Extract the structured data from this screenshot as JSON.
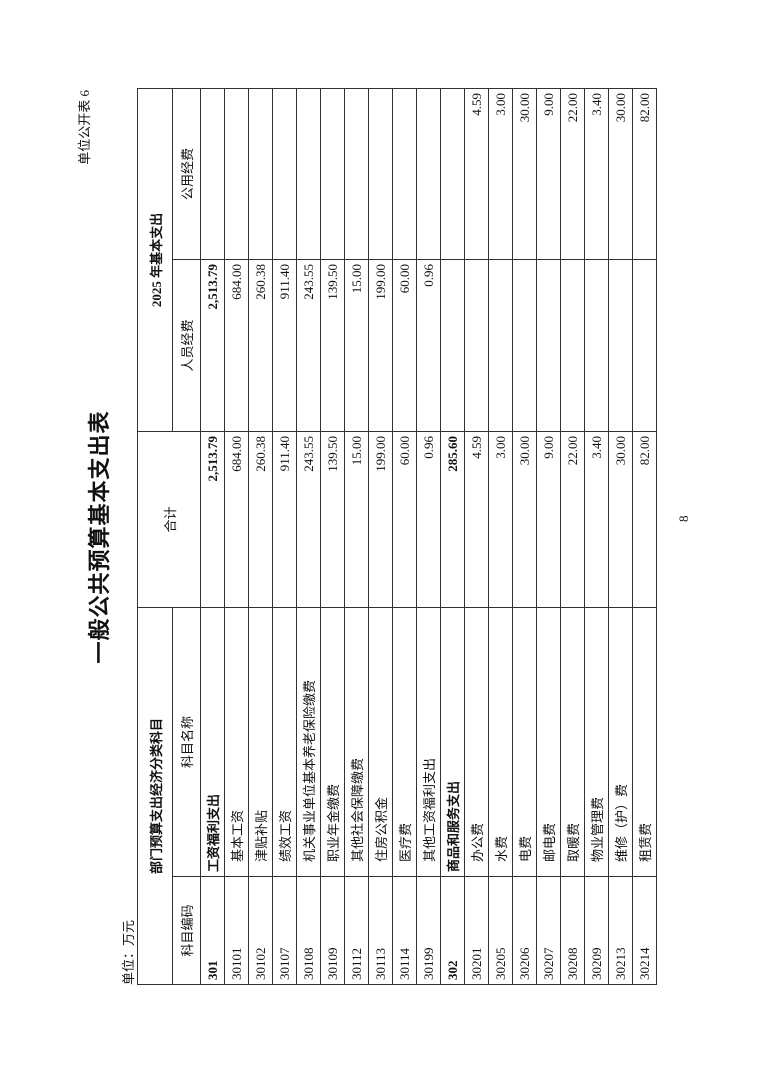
{
  "form_no": "单位公开表 6",
  "title": "一般公共预算基本支出表",
  "unit": "单位：万元",
  "page_number": "8",
  "header": {
    "group_left": "部门预算支出经济分类科目",
    "group_right": "2025 年基本支出",
    "code": "科目编码",
    "name": "科目名称",
    "total": "合计",
    "personnel": "人员经费",
    "public": "公用经费"
  },
  "rows": [
    {
      "code": "301",
      "name": "工资福利支出",
      "total": "2,513.79",
      "personnel": "2,513.79",
      "public": "",
      "bold": true
    },
    {
      "code": "30101",
      "name": "基本工资",
      "total": "684.00",
      "personnel": "684.00",
      "public": ""
    },
    {
      "code": "30102",
      "name": "津贴补贴",
      "total": "260.38",
      "personnel": "260.38",
      "public": ""
    },
    {
      "code": "30107",
      "name": "绩效工资",
      "total": "911.40",
      "personnel": "911.40",
      "public": ""
    },
    {
      "code": "30108",
      "name": "机关事业单位基本养老保险缴费",
      "total": "243.55",
      "personnel": "243.55",
      "public": ""
    },
    {
      "code": "30109",
      "name": "职业年金缴费",
      "total": "139.50",
      "personnel": "139.50",
      "public": ""
    },
    {
      "code": "30112",
      "name": "其他社会保障缴费",
      "total": "15.00",
      "personnel": "15.00",
      "public": ""
    },
    {
      "code": "30113",
      "name": "住房公积金",
      "total": "199.00",
      "personnel": "199.00",
      "public": ""
    },
    {
      "code": "30114",
      "name": "医疗费",
      "total": "60.00",
      "personnel": "60.00",
      "public": ""
    },
    {
      "code": "30199",
      "name": "其他工资福利支出",
      "total": "0.96",
      "personnel": "0.96",
      "public": ""
    },
    {
      "code": "302",
      "name": "商品和服务支出",
      "total": "285.60",
      "personnel": "",
      "public": "",
      "bold": true
    },
    {
      "code": "30201",
      "name": "办公费",
      "total": "4.59",
      "personnel": "",
      "public": "4.59"
    },
    {
      "code": "30205",
      "name": "水费",
      "total": "3.00",
      "personnel": "",
      "public": "3.00"
    },
    {
      "code": "30206",
      "name": "电费",
      "total": "30.00",
      "personnel": "",
      "public": "30.00"
    },
    {
      "code": "30207",
      "name": "邮电费",
      "total": "9.00",
      "personnel": "",
      "public": "9.00"
    },
    {
      "code": "30208",
      "name": "取暖费",
      "total": "22.00",
      "personnel": "",
      "public": "22.00"
    },
    {
      "code": "30209",
      "name": "物业管理费",
      "total": "3.40",
      "personnel": "",
      "public": "3.40"
    },
    {
      "code": "30213",
      "name": "维修（护）费",
      "total": "30.00",
      "personnel": "",
      "public": "30.00"
    },
    {
      "code": "30214",
      "name": "租赁费",
      "total": "82.00",
      "personnel": "",
      "public": "82.00"
    }
  ]
}
